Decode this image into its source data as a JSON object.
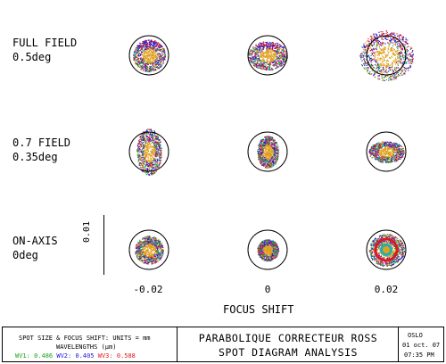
{
  "rows": [
    {
      "line1": "FULL FIELD",
      "line2": "0.5deg"
    },
    {
      "line1": "0.7 FIELD",
      "line2": "0.35deg"
    },
    {
      "line1": "ON-AXIS",
      "line2": "0deg"
    }
  ],
  "axis": {
    "ticks": [
      "-0.02",
      "0",
      "0.02"
    ],
    "title": "FOCUS SHIFT",
    "scale_label": "0.01"
  },
  "info": {
    "units_line": "SPOT SIZE & FOCUS SHIFT: UNITS = mm",
    "wavelengths_line": "WAVELENGTHS (µm)",
    "wv1": "WV1: 0.486",
    "wv2": "WV2: 0.405",
    "wv3": "WV3: 0.588",
    "title1": "PARABOLIQUE CORRECTEUR ROSS",
    "title2": "SPOT DIAGRAM ANALYSIS",
    "program": "OSLO",
    "date": "01 oct. 07",
    "time": "07:35 PM"
  },
  "colors": {
    "wv1": "#1aa21a",
    "wv2": "#1a1add",
    "wv3": "#dd1a1a",
    "core": "#e0a020"
  }
}
